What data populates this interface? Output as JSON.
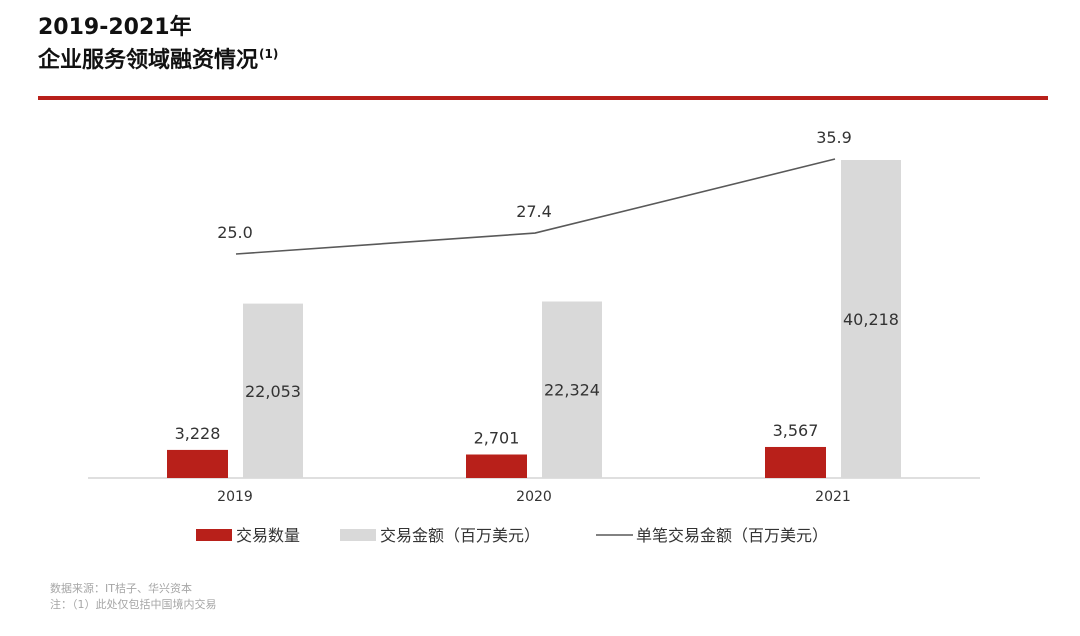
{
  "title": {
    "line1": "2019-2021年",
    "line2": "企业服务领域融资情况",
    "footnote_mark": "(1)"
  },
  "source": {
    "line1": "数据来源：IT桔子、华兴资本",
    "line2": "注：（1）此处仅包括中国境内交易"
  },
  "colors": {
    "accent": "#b8201a",
    "count_bar": "#b8201a",
    "amount_bar": "#d9d9d9",
    "line": "#595959",
    "text": "#333333"
  },
  "chart_data": {
    "type": "bar",
    "categories": [
      "2019",
      "2020",
      "2021"
    ],
    "series": [
      {
        "name": "交易数量",
        "type": "bar",
        "values": [
          3228,
          2701,
          3567
        ],
        "labels": [
          "3,228",
          "2,701",
          "3,567"
        ]
      },
      {
        "name": "交易金额（百万美元）",
        "type": "bar",
        "values": [
          22053,
          22324,
          40218
        ],
        "labels": [
          "22,053",
          "22,324",
          "40,218"
        ]
      },
      {
        "name": "单笔交易金额（百万美元）",
        "type": "line",
        "values": [
          25.0,
          27.4,
          35.9
        ],
        "labels": [
          "25.0",
          "27.4",
          "35.9"
        ]
      }
    ],
    "legend": "bottom",
    "grid": false
  }
}
